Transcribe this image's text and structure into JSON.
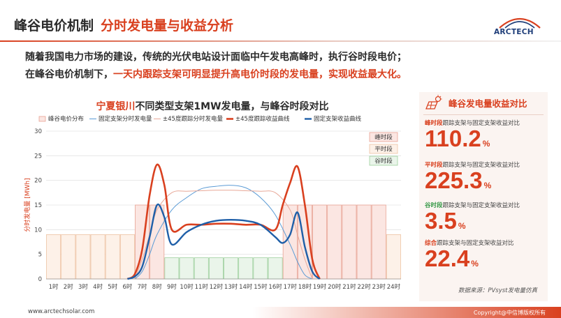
{
  "header": {
    "title_main": "峰谷电价机制",
    "title_sub": "分时发电量与收益分析",
    "logo_text": "ARCTECH",
    "brand_color": "#d9401f"
  },
  "intro": {
    "line1": "随着我国电力市场的建设，传统的光伏电站设计面临中午发电高峰时，执行谷时段电价；",
    "line2_prefix": "在峰谷电价机制下，",
    "line2_highlight": "一天内跟踪支架可明显提升高电价时段的发电量，实现收益最大化。"
  },
  "chart_data": {
    "type": "line",
    "title_location": "宁夏银川",
    "title_rest": "不同类型支架1MW发电量，与峰谷时段对比",
    "ylabel": "分时发电量 [MWh]",
    "ylim": [
      0,
      30
    ],
    "yticks": [
      0,
      5,
      10,
      15,
      20,
      25,
      30
    ],
    "categories": [
      "1时",
      "2时",
      "3时",
      "4时",
      "5时",
      "6时",
      "7时",
      "8时",
      "9时",
      "10时",
      "11时",
      "12时",
      "13时",
      "14时",
      "15时",
      "16时",
      "17时",
      "18时",
      "19时",
      "20时",
      "21时",
      "22时",
      "23时",
      "24时"
    ],
    "legend": [
      "峰谷电价分布",
      "固定支架分时发电量",
      "±45度跟踪分时发电量",
      "±45度跟踪收益曲线",
      "固定支架收益曲线"
    ],
    "period_legend": {
      "peak": "峰时段",
      "flat": "平时段",
      "valley": "谷时段"
    },
    "price_distribution": [
      9,
      9,
      9,
      9,
      9,
      9,
      15,
      15,
      4.3,
      4.3,
      4.3,
      4.3,
      4.3,
      4.3,
      4.3,
      4.3,
      15,
      15,
      15,
      15,
      15,
      15,
      15,
      9
    ],
    "price_type": [
      "flat",
      "flat",
      "flat",
      "flat",
      "flat",
      "flat",
      "peak",
      "peak",
      "valley",
      "valley",
      "valley",
      "valley",
      "valley",
      "valley",
      "valley",
      "valley",
      "peak",
      "peak",
      "peak",
      "peak",
      "peak",
      "peak",
      "peak",
      "flat"
    ],
    "series": [
      {
        "name": "固定支架分时发电量",
        "x": [
          6.5,
          7,
          7.5,
          8,
          9,
          10,
          11,
          12,
          13,
          14,
          15,
          16,
          17,
          17.5,
          18,
          18.5
        ],
        "values": [
          0,
          1.5,
          5,
          9,
          14,
          16.5,
          18.3,
          18.8,
          19,
          18.5,
          16.5,
          13,
          7,
          3.5,
          0.8,
          0
        ],
        "color": "#5b9bd5",
        "width": 1
      },
      {
        "name": "±45度跟踪分时发电量",
        "x": [
          6.5,
          7,
          7.5,
          8,
          9,
          10,
          11,
          12,
          13,
          14,
          15,
          16,
          17,
          17.5,
          18,
          18.5
        ],
        "values": [
          0,
          4,
          9,
          14,
          17.5,
          17.8,
          17.9,
          18,
          18,
          17.9,
          17.8,
          17.5,
          14,
          9,
          4,
          0
        ],
        "color": "#e8a898",
        "width": 1
      },
      {
        "name": "±45度跟踪收益曲线",
        "x": [
          6,
          6.5,
          7,
          7.5,
          8,
          8.5,
          9,
          10,
          11,
          12,
          13,
          14,
          15,
          16,
          16.5,
          17,
          17.5,
          18,
          18.5,
          19
        ],
        "values": [
          0,
          1,
          6,
          17,
          23.2,
          19,
          10,
          11,
          11,
          11.2,
          11.2,
          11,
          11,
          10,
          15,
          19.5,
          22.8,
          15,
          4,
          0
        ],
        "color": "#d9401f",
        "width": 2.6
      },
      {
        "name": "固定支架收益曲线",
        "x": [
          6,
          6.5,
          7,
          7.5,
          8,
          8.5,
          9,
          10,
          11,
          12,
          13,
          14,
          15,
          16,
          16.5,
          17,
          17.5,
          18,
          18.5,
          19
        ],
        "values": [
          0,
          0.5,
          2.5,
          8.5,
          15,
          12.5,
          7,
          9.5,
          11,
          11.8,
          12,
          11.8,
          11,
          8.5,
          7.3,
          9,
          13.5,
          6.5,
          1.5,
          0
        ],
        "color": "#1f5fa8",
        "width": 2.4
      }
    ]
  },
  "panel": {
    "title": "峰谷发电量收益对比",
    "metrics": [
      {
        "tag": "峰时段",
        "desc": "跟踪支架与固定支架收益对比",
        "value": "110.2",
        "unit": "%"
      },
      {
        "tag": "平时段",
        "desc": "跟踪支架与固定支架收益对比",
        "value": "225.3",
        "unit": "%"
      },
      {
        "tag": "谷时段",
        "desc": "跟踪支架与固定支架收益对比",
        "value": "3.5",
        "unit": "%"
      },
      {
        "tag": "综合",
        "desc": "跟踪支架与固定支架收益对比",
        "value": "22.4",
        "unit": "%"
      }
    ]
  },
  "source": "数据来源：PVsyst发电量仿真",
  "footer": {
    "website": "www.arctechsolar.com",
    "copyright": "Copyright@中信博版权所有"
  }
}
